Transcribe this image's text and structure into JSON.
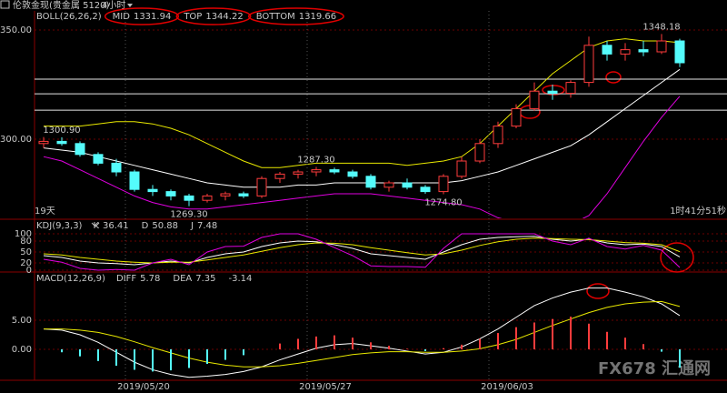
{
  "header": {
    "title": "伦敦金现(贵金属 5120)",
    "period": "4小时"
  },
  "watermark": "FX678 汇通网",
  "chart_data": [
    {
      "type": "candlestick",
      "indicator": "BOLL(26,26,2)",
      "categories": [
        null,
        null,
        null,
        null,
        null,
        "2019/05/20",
        null,
        null,
        null,
        null,
        null,
        null,
        null,
        null,
        null,
        "2019/05/27",
        null,
        null,
        null,
        null,
        null,
        null,
        null,
        null,
        null,
        "2019/06/03",
        null,
        null,
        null,
        null,
        null,
        null,
        null,
        null,
        null,
        null
      ],
      "open": [
        1298,
        1299,
        1298,
        1293,
        1289,
        1285,
        1277,
        1276,
        1274,
        1272,
        1274,
        1275,
        1274,
        1282,
        1284,
        1285,
        1286,
        1285,
        1283,
        1278,
        1280,
        1278,
        1276,
        1283,
        1290,
        1298,
        1306,
        1314,
        1322,
        1321,
        1326,
        1343,
        1339,
        1341,
        1340,
        1345
      ],
      "high": [
        1301,
        1300.9,
        1299,
        1294,
        1291,
        1286,
        1279,
        1277,
        1275,
        1275,
        1276,
        1276,
        1283,
        1285,
        1286,
        1287.3,
        1287,
        1286,
        1284,
        1281,
        1282,
        1279,
        1284,
        1292,
        1300,
        1308,
        1316,
        1326,
        1325,
        1327,
        1347,
        1345,
        1344,
        1345,
        1348.18,
        1346
      ],
      "low": [
        1296,
        1297,
        1292,
        1288,
        1283,
        1276,
        1274,
        1272,
        1269.3,
        1271,
        1272,
        1273,
        1273,
        1280,
        1282,
        1283,
        1284,
        1282,
        1277,
        1276,
        1277,
        1275,
        1274.8,
        1282,
        1289,
        1296,
        1305,
        1313,
        1318,
        1319,
        1324,
        1336,
        1336,
        1338,
        1339,
        1333
      ],
      "close": [
        1299,
        1298,
        1293,
        1289,
        1285,
        1277,
        1276,
        1274,
        1272,
        1274,
        1275,
        1274,
        1282,
        1284,
        1285,
        1286,
        1285,
        1283,
        1278,
        1280,
        1278,
        1276,
        1283,
        1290,
        1298,
        1306,
        1314,
        1322,
        1321,
        1326,
        1343,
        1339,
        1341,
        1340,
        1345,
        1335
      ],
      "up_color": "#ff3c3c",
      "down_color": "#54fcfc",
      "series": [
        {
          "name": "MID",
          "color": "#ffffff",
          "values": [
            1296,
            1295,
            1294,
            1292,
            1290,
            1288,
            1286,
            1284,
            1282,
            1280,
            1279,
            1278,
            1278,
            1278,
            1279,
            1279,
            1280,
            1280,
            1280,
            1280,
            1280,
            1280,
            1280,
            1281,
            1283,
            1285,
            1288,
            1291,
            1294,
            1297,
            1302,
            1308,
            1314,
            1320,
            1326,
            1331.94
          ]
        },
        {
          "name": "TOP",
          "color": "#e8e800",
          "values": [
            1306,
            1306,
            1306,
            1307,
            1308,
            1308,
            1307,
            1305,
            1302,
            1298,
            1294,
            1290,
            1287,
            1287,
            1288,
            1289,
            1289,
            1289,
            1289,
            1289,
            1288,
            1289,
            1290,
            1292,
            1298,
            1306,
            1314,
            1322,
            1330,
            1336,
            1342,
            1345,
            1346,
            1345,
            1345,
            1344.22
          ]
        },
        {
          "name": "BOTTOM",
          "color": "#e000e0",
          "values": [
            1292,
            1290,
            1286,
            1282,
            1278,
            1274,
            1271,
            1269,
            1268,
            1268,
            1269,
            1270,
            1271,
            1272,
            1273,
            1274,
            1275,
            1275,
            1275,
            1274,
            1273,
            1272,
            1271,
            1270,
            1268,
            1264,
            1262,
            1260,
            1259,
            1261,
            1265,
            1275,
            1287,
            1299,
            1310,
            1319.66
          ]
        }
      ],
      "ylim": [
        1263.75,
        1358.75
      ],
      "yticks": [
        {
          "value": 1350,
          "label": "1350.00"
        },
        {
          "value": 1300,
          "label": "1300.00"
        }
      ],
      "grid": true,
      "hlines": [
        1327.5,
        1320.8,
        1313.3
      ],
      "point_labels": [
        {
          "value": 1300.9,
          "label": "1300.90"
        },
        {
          "value": 1287.3,
          "label": "1287.30"
        },
        {
          "value": 1348.18,
          "label": "1348.18"
        },
        {
          "value": 1269.3,
          "label": "1269.30"
        },
        {
          "value": 1274.8,
          "label": "1274.80"
        }
      ],
      "notes": [
        "19天",
        "1时41分51秒"
      ]
    },
    {
      "type": "line",
      "indicator": "KDJ(9,3,3)",
      "series": [
        {
          "name": "K",
          "color": "#ffffff",
          "values": [
            40,
            35,
            25,
            20,
            18,
            15,
            20,
            25,
            20,
            35,
            45,
            50,
            65,
            75,
            80,
            78,
            70,
            60,
            45,
            40,
            35,
            30,
            50,
            70,
            85,
            90,
            92,
            93,
            85,
            80,
            85,
            75,
            70,
            72,
            65,
            36.41
          ]
        },
        {
          "name": "D",
          "color": "#e8e800",
          "values": [
            45,
            42,
            35,
            30,
            25,
            22,
            20,
            22,
            22,
            28,
            35,
            42,
            52,
            62,
            70,
            75,
            74,
            70,
            62,
            55,
            48,
            42,
            45,
            55,
            68,
            78,
            85,
            88,
            87,
            85,
            84,
            80,
            76,
            74,
            70,
            50.88
          ]
        },
        {
          "name": "J",
          "color": "#e000e0",
          "values": [
            30,
            22,
            5,
            0,
            2,
            0,
            20,
            30,
            15,
            50,
            65,
            66,
            90,
            100,
            100,
            85,
            62,
            40,
            12,
            10,
            10,
            8,
            60,
            100,
            100,
            100,
            100,
            100,
            80,
            70,
            88,
            65,
            58,
            68,
            55,
            7.48
          ]
        }
      ],
      "ylim": [
        0,
        100
      ],
      "yticks": [
        0,
        20,
        50,
        80,
        100
      ],
      "grid": true
    },
    {
      "type": "macd",
      "indicator": "MACD(12,26,9)",
      "up_color": "#ff3c3c",
      "down_color": "#54fcfc",
      "series": [
        {
          "name": "DIFF",
          "color": "#ffffff",
          "values": [
            3.5,
            3.3,
            2.5,
            1.2,
            -0.5,
            -2.2,
            -3.5,
            -4.3,
            -4.8,
            -4.6,
            -4.3,
            -3.8,
            -3.0,
            -1.8,
            -0.8,
            0.2,
            0.8,
            1.0,
            0.6,
            0.2,
            -0.3,
            -0.8,
            -0.5,
            0.4,
            1.8,
            3.5,
            5.5,
            7.5,
            8.8,
            9.8,
            10.5,
            10.5,
            9.8,
            9.0,
            7.8,
            5.78
          ]
        },
        {
          "name": "DEA",
          "color": "#e8e800",
          "values": [
            3.5,
            3.5,
            3.3,
            2.9,
            2.2,
            1.3,
            0.3,
            -0.6,
            -1.5,
            -2.2,
            -2.7,
            -3.0,
            -3.0,
            -2.8,
            -2.4,
            -1.9,
            -1.4,
            -0.9,
            -0.6,
            -0.4,
            -0.4,
            -0.5,
            -0.5,
            -0.3,
            0.1,
            0.8,
            1.7,
            2.9,
            4.1,
            5.2,
            6.3,
            7.2,
            7.8,
            8.1,
            8.2,
            7.35
          ]
        },
        {
          "kind": "histogram",
          "values": [
            0,
            -0.5,
            -1.2,
            -2.0,
            -2.8,
            -3.5,
            -3.8,
            -3.6,
            -3.2,
            -2.5,
            -1.8,
            -1.0,
            0,
            1.0,
            1.8,
            2.2,
            2.4,
            2.0,
            1.2,
            0.6,
            0.1,
            -0.3,
            0.2,
            0.8,
            1.8,
            2.8,
            3.8,
            4.6,
            5.2,
            5.6,
            4.4,
            3.0,
            2.0,
            0.9,
            -0.4,
            -3.14
          ]
        }
      ],
      "ylim": [
        -5.3,
        13.1
      ],
      "yticks": [
        {
          "value": 0,
          "label": "0.00"
        },
        {
          "value": 5,
          "label": "5.00"
        }
      ],
      "grid": true
    }
  ]
}
